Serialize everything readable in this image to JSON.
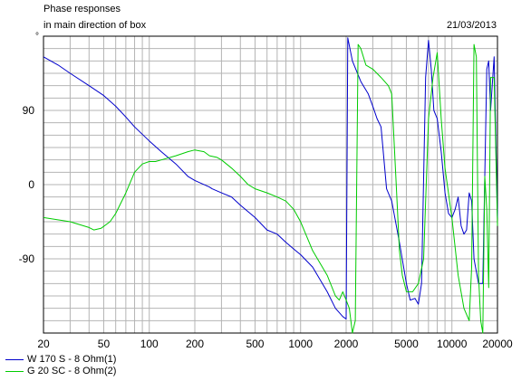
{
  "header": {
    "title": "Phase responses",
    "subtitle": "in main direction of box",
    "date": "21/03/2013",
    "unit_symbol": "°"
  },
  "chart_data": {
    "type": "line",
    "title": "Phase responses",
    "subtitle": "in main direction of box",
    "xlabel": "",
    "ylabel": "°",
    "xscale": "log",
    "xlim": [
      20,
      20000
    ],
    "ylim": [
      -180,
      180
    ],
    "x_ticks": [
      20,
      50,
      100,
      200,
      500,
      1000,
      2000,
      5000,
      10000,
      20000
    ],
    "x_tick_labels": [
      "20",
      "50",
      "100",
      "200",
      "500",
      "1000",
      "2000",
      "5000",
      "10000",
      "20000"
    ],
    "y_ticks": [
      90,
      0,
      -90
    ],
    "y_tick_labels": [
      "90",
      "0",
      "-90"
    ],
    "grid": true,
    "legend_position": "bottom-left",
    "series": [
      {
        "name": "W 170 S - 8 Ohm(1)",
        "color": "#0000cc",
        "x": [
          20,
          25,
          30,
          40,
          50,
          60,
          70,
          80,
          100,
          120,
          150,
          180,
          200,
          250,
          260,
          300,
          350,
          400,
          500,
          600,
          700,
          800,
          900,
          1000,
          1200,
          1500,
          1700,
          1900,
          2000,
          2050,
          2200,
          2500,
          2800,
          3000,
          3200,
          3400,
          3700,
          4000,
          4500,
          5000,
          5300,
          5700,
          6000,
          6300,
          6700,
          7000,
          7300,
          7600,
          8000,
          8500,
          9000,
          9500,
          10000,
          10500,
          11000,
          11500,
          12000,
          12500,
          13000,
          13500,
          14000,
          15000,
          16000,
          17000,
          17500,
          18000,
          19000,
          20000
        ],
        "y": [
          155,
          145,
          135,
          120,
          108,
          95,
          82,
          70,
          53,
          40,
          25,
          10,
          5,
          -3,
          -5,
          -10,
          -15,
          -25,
          -40,
          -55,
          -60,
          -70,
          -78,
          -85,
          -100,
          -130,
          -150,
          -160,
          -163,
          178,
          150,
          125,
          110,
          95,
          80,
          70,
          -5,
          -20,
          -70,
          -120,
          -140,
          -138,
          -145,
          -120,
          130,
          175,
          140,
          90,
          80,
          40,
          -10,
          -35,
          -40,
          -30,
          -15,
          -50,
          -60,
          -55,
          -10,
          -20,
          -90,
          -120,
          -120,
          140,
          150,
          90,
          155,
          -40
        ]
      },
      {
        "name": "G 20 SC - 8 Ohm(2)",
        "color": "#00cc00",
        "x": [
          20,
          30,
          40,
          43,
          48,
          55,
          60,
          70,
          80,
          90,
          100,
          110,
          120,
          150,
          180,
          200,
          230,
          250,
          280,
          300,
          350,
          400,
          450,
          500,
          600,
          700,
          800,
          900,
          1000,
          1200,
          1500,
          1700,
          1800,
          1900,
          2000,
          2100,
          2200,
          2300,
          2400,
          2500,
          2700,
          3000,
          3400,
          3800,
          4000,
          4300,
          4500,
          4700,
          5000,
          5500,
          6000,
          6500,
          7000,
          7500,
          8000,
          8500,
          9000,
          10000,
          11000,
          12000,
          13000,
          13500,
          14000,
          14500,
          15000,
          15500,
          16000,
          16500,
          17000,
          17500,
          18000,
          19000,
          20000
        ],
        "y": [
          -40,
          -45,
          -52,
          -55,
          -53,
          -45,
          -35,
          -10,
          15,
          25,
          28,
          28,
          30,
          35,
          40,
          42,
          40,
          35,
          33,
          30,
          20,
          10,
          0,
          -5,
          -10,
          -15,
          -20,
          -30,
          -45,
          -80,
          -110,
          -135,
          -140,
          -130,
          -140,
          -150,
          -180,
          -165,
          170,
          165,
          145,
          140,
          130,
          120,
          110,
          -5,
          -80,
          -110,
          -130,
          -130,
          -120,
          -90,
          80,
          130,
          160,
          80,
          20,
          -40,
          -110,
          -150,
          -165,
          -100,
          170,
          155,
          -110,
          -165,
          -180,
          10,
          -30,
          -125,
          130,
          130,
          -50
        ]
      }
    ]
  },
  "legend": [
    {
      "label": "W 170 S - 8 Ohm(1)",
      "color": "#0000cc"
    },
    {
      "label": "G 20 SC - 8 Ohm(2)",
      "color": "#00cc00"
    }
  ]
}
